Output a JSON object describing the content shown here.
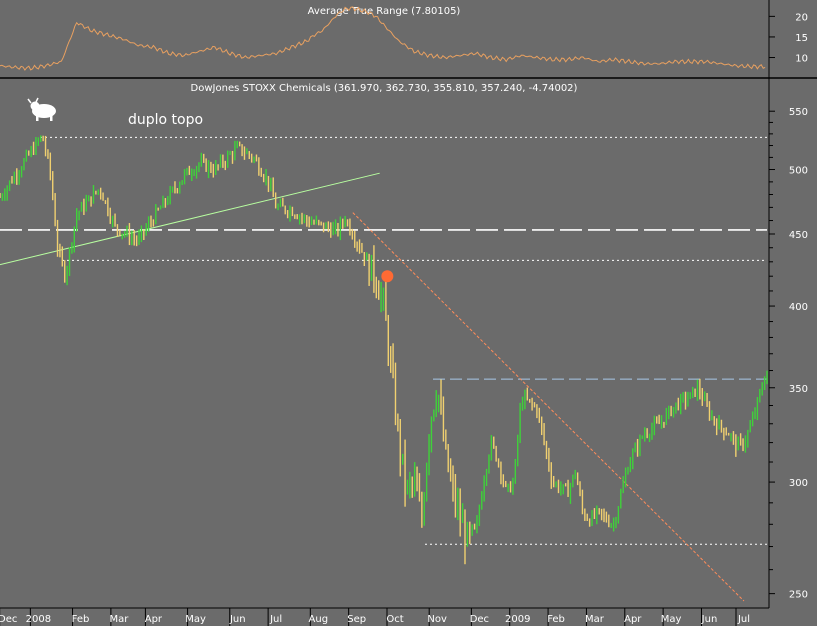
{
  "chart_data": [
    {
      "type": "line",
      "title": "Average True Range (7.80105)",
      "y_ticks": [
        20,
        15,
        10
      ],
      "ylim": [
        6,
        23
      ],
      "series": [
        {
          "color": "#e8a060",
          "x": [
            0,
            2,
            4,
            6,
            8,
            10,
            11,
            12,
            14,
            16,
            18,
            20,
            22,
            24,
            26,
            28,
            30,
            32,
            34,
            36,
            38,
            40,
            41,
            42,
            43,
            44,
            45,
            46,
            47,
            48,
            49,
            50,
            52,
            54,
            56,
            58,
            60,
            62,
            64,
            66,
            68,
            70,
            72,
            74,
            76,
            78,
            80,
            82,
            84,
            86,
            88,
            90,
            92,
            94,
            96,
            98,
            100
          ],
          "y": [
            8.0,
            7.6,
            7.4,
            8.0,
            9.0,
            18.5,
            17.5,
            16.5,
            15.5,
            14.5,
            13.0,
            12.5,
            11.0,
            10.5,
            11.5,
            12.5,
            11.0,
            10.0,
            10.5,
            11.0,
            12.5,
            14.0,
            15.5,
            16.5,
            18.5,
            20.5,
            21.8,
            22.0,
            21.5,
            21.0,
            20.0,
            18.0,
            14.0,
            11.5,
            10.5,
            10.0,
            10.5,
            11.0,
            10.0,
            9.5,
            10.5,
            10.0,
            9.5,
            9.5,
            10.0,
            9.0,
            9.5,
            9.0,
            8.5,
            8.5,
            9.0,
            9.0,
            9.0,
            8.5,
            8.0,
            7.8,
            7.8
          ]
        }
      ]
    },
    {
      "type": "bar",
      "title": "DowJones STOXX Chemicals (361.970, 362.730, 355.810, 357.240, -4.74002)",
      "annotation": "duplo topo",
      "scale": "log",
      "ylim": [
        245,
        575
      ],
      "y_ticks": [
        550,
        500,
        450,
        400,
        350,
        300,
        250
      ],
      "x_labels": [
        {
          "label": "Dec",
          "pos": 1
        },
        {
          "label": "2008",
          "pos": 5
        },
        {
          "label": "Feb",
          "pos": 10.5
        },
        {
          "label": "Mar",
          "pos": 15.5
        },
        {
          "label": "Apr",
          "pos": 20
        },
        {
          "label": "May",
          "pos": 25.5
        },
        {
          "label": "Jun",
          "pos": 31
        },
        {
          "label": "Jul",
          "pos": 36
        },
        {
          "label": "Aug",
          "pos": 41.5
        },
        {
          "label": "Sep",
          "pos": 46.5
        },
        {
          "label": "Oct",
          "pos": 51.5
        },
        {
          "label": "Nov",
          "pos": 57
        },
        {
          "label": "Dec",
          "pos": 62.5
        },
        {
          "label": "2009",
          "pos": 67.5
        },
        {
          "label": "Feb",
          "pos": 72.5
        },
        {
          "label": "Mar",
          "pos": 77.5
        },
        {
          "label": "Apr",
          "pos": 82.5
        },
        {
          "label": "May",
          "pos": 87.5
        },
        {
          "label": "Jun",
          "pos": 92.5
        },
        {
          "label": "Jul",
          "pos": 97
        }
      ],
      "price_path": {
        "x": [
          0,
          3,
          5.5,
          6.5,
          7.5,
          8.5,
          10,
          13,
          15,
          18,
          20,
          22,
          24,
          26,
          28,
          30,
          31,
          33,
          35,
          36,
          38,
          40,
          42,
          44,
          45,
          46,
          47,
          48,
          49,
          50,
          51,
          52,
          53,
          54,
          55,
          56,
          57,
          58,
          59,
          60,
          61,
          62,
          63,
          64,
          65,
          66,
          67,
          68,
          70,
          72,
          74,
          75,
          76,
          77,
          78,
          80,
          81,
          82,
          84,
          86,
          88,
          90,
          91,
          92,
          93,
          94,
          95,
          96,
          97,
          98,
          99,
          100
        ],
        "y": [
          478,
          505,
          528,
          500,
          440,
          420,
          465,
          485,
          455,
          445,
          462,
          478,
          495,
          505,
          500,
          512,
          518,
          510,
          490,
          470,
          468,
          460,
          456,
          452,
          462,
          450,
          440,
          428,
          420,
          400,
          360,
          320,
          295,
          300,
          282,
          330,
          352,
          315,
          295,
          282,
          272,
          275,
          300,
          320,
          310,
          295,
          300,
          345,
          338,
          300,
          295,
          305,
          285,
          282,
          285,
          280,
          295,
          310,
          325,
          330,
          340,
          345,
          350,
          340,
          332,
          328,
          325,
          318,
          320,
          330,
          345,
          360
        ]
      },
      "reference_lines": [
        {
          "name": "double top resistance",
          "value": 527,
          "color": "#ffffff",
          "style": "dotted"
        },
        {
          "name": "support",
          "value": 431,
          "color": "#ffffff",
          "style": "dotted"
        },
        {
          "name": "long dashed level",
          "value": 453,
          "color": "#ffffff",
          "style": "dashed"
        },
        {
          "name": "recent resistance",
          "value": 355,
          "color": "#a8c8e8",
          "style": "dashed"
        },
        {
          "name": "bottom support",
          "value": 271,
          "color": "#ffffff",
          "style": "dotted"
        }
      ],
      "trend_lines": [
        {
          "name": "uptrend",
          "from": [
            0,
            428
          ],
          "to": [
            49.5,
            497
          ],
          "color": "#b8ffa0",
          "style": "solid"
        },
        {
          "name": "downtrend",
          "from": [
            46,
            466
          ],
          "to": [
            97,
            247
          ],
          "color": "#ff8c5a",
          "style": "dotted"
        }
      ],
      "marker": {
        "x": 50.5,
        "value": 420,
        "color": "#ff6a33"
      }
    }
  ]
}
